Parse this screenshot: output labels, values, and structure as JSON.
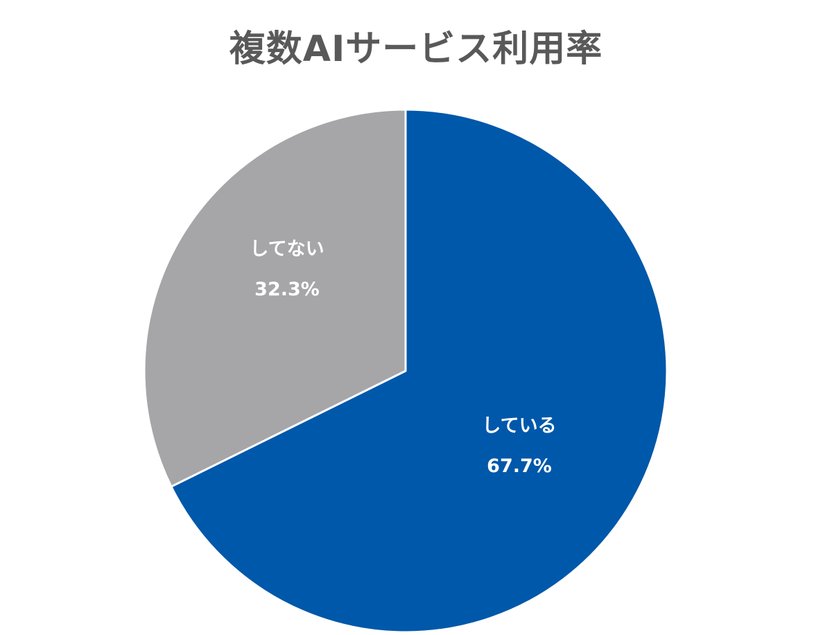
{
  "chart_data": {
    "type": "pie",
    "title": "複数AIサービス利用率",
    "categories": [
      "している",
      "してない"
    ],
    "values": [
      67.7,
      32.3
    ],
    "value_labels": [
      "67.7%",
      "32.3%"
    ],
    "colors": [
      "#0058AA",
      "#A6A5A8"
    ],
    "start_angle": "12 o'clock, clockwise",
    "legend": "none (data labels inside slices)"
  },
  "labels": {
    "yes": {
      "name": "している",
      "value": "67.7%"
    },
    "no": {
      "name": "してない",
      "value": "32.3%"
    }
  }
}
